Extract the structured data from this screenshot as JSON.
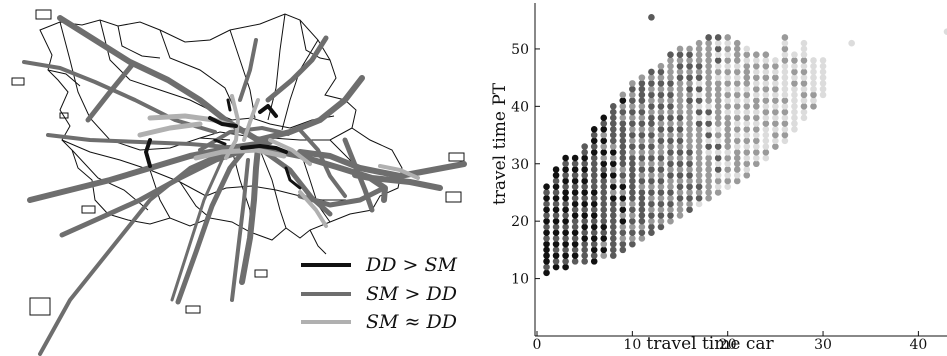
{
  "map_legend": {
    "items": [
      {
        "label": "DD > SM",
        "color": "#111111"
      },
      {
        "label": "SM > DD",
        "color": "#6e6e6e"
      },
      {
        "label": "SM ≈ DD",
        "color": "#b0b0b0"
      }
    ]
  },
  "chart_data": {
    "type": "scatter",
    "title": "",
    "xlabel": "travel time car",
    "ylabel": "travel time PT",
    "xlim": [
      0,
      43
    ],
    "ylim": [
      0,
      58
    ],
    "xticks": [
      "0",
      "10",
      "20",
      "30",
      "40"
    ],
    "yticks": [
      "10",
      "20",
      "30",
      "40",
      "50"
    ],
    "grid": false,
    "legend": "none",
    "color_scale": [
      "#111111",
      "#5a5a5a",
      "#9a9a9a",
      "#dcdcdc"
    ],
    "point_bands": [
      {
        "x_from": 1,
        "x_to": 4,
        "y_min": [
          11,
          12,
          12,
          13
        ],
        "y_max": [
          26,
          29,
          31,
          31
        ]
      },
      {
        "x_from": 5,
        "x_to": 9,
        "y_min": [
          13,
          13,
          14,
          14,
          15
        ],
        "y_max": [
          33,
          36,
          38,
          40,
          42
        ]
      },
      {
        "x_from": 10,
        "x_to": 15,
        "y_min": [
          16,
          17,
          18,
          19,
          20,
          21
        ],
        "y_max": [
          44,
          45,
          46,
          47,
          49,
          50
        ]
      },
      {
        "x_from": 16,
        "x_to": 22,
        "y_min": [
          22,
          23,
          24,
          25,
          26,
          27,
          28
        ],
        "y_max": [
          50,
          51,
          52,
          52,
          52,
          51,
          50
        ]
      },
      {
        "x_from": 23,
        "x_to": 30,
        "y_min": [
          30,
          31,
          33,
          34,
          36,
          38,
          40,
          42
        ],
        "y_max": [
          49,
          49,
          48,
          52,
          49,
          51,
          48,
          48
        ]
      }
    ],
    "outliers": [
      {
        "x": 12,
        "y": 55.5
      },
      {
        "x": 33,
        "y": 51
      },
      {
        "x": 43,
        "y": 53
      }
    ]
  }
}
